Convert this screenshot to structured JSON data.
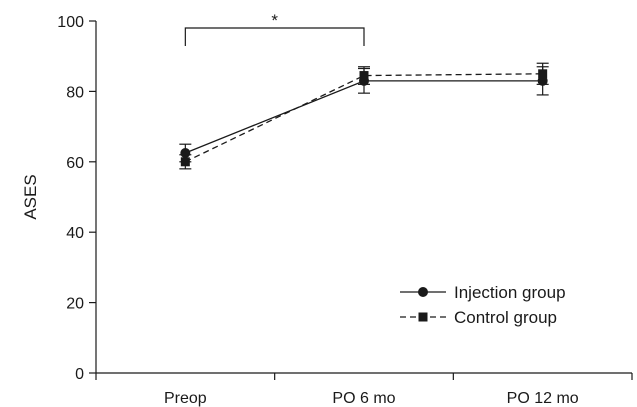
{
  "chart_data": {
    "type": "line",
    "categories": [
      "Preop",
      "PO 6 mo",
      "PO 12 mo"
    ],
    "ylabel": "ASES",
    "ylim": [
      0,
      100
    ],
    "yticks": [
      0,
      20,
      40,
      60,
      80,
      100
    ],
    "grid": false,
    "legend_position": "bottom-right",
    "series": [
      {
        "name": "Injection group",
        "marker": "circle",
        "line_style": "solid",
        "values": [
          62.5,
          83,
          83
        ],
        "error": [
          2.5,
          3.5,
          4
        ]
      },
      {
        "name": "Control group",
        "marker": "square",
        "line_style": "dashed",
        "values": [
          60,
          84.5,
          85
        ],
        "error": [
          2,
          2.5,
          3
        ]
      }
    ],
    "annotations": [
      {
        "text": "*",
        "from": "Preop",
        "to": "PO 6 mo"
      }
    ]
  }
}
